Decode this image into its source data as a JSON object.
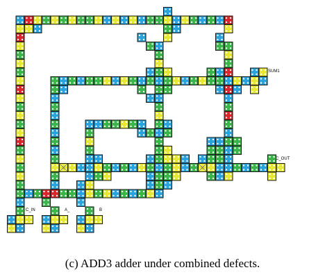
{
  "labels": {
    "c_in": "C_IN",
    "a": "A_",
    "b": "B",
    "sum": "SUM1",
    "c_out": "C_OUT"
  },
  "caption": "(c) ADD3 adder under combined defects.",
  "colors": {
    "yellow": "#e6e834",
    "green": "#3ab54a",
    "blue": "#29a3dc",
    "red": "#d8262c",
    "border": "#1a1a1a",
    "dot": "#ffffff"
  }
}
